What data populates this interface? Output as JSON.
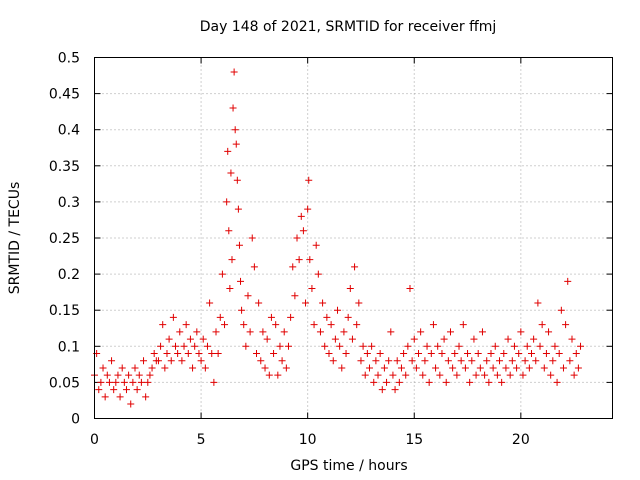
{
  "chart_data": {
    "type": "scatter",
    "title": "Day 148 of 2021, SRMTID for receiver ffmj",
    "xlabel": "GPS time / hours",
    "ylabel": "SRMTID / TECUs",
    "xlim": [
      0,
      24.3
    ],
    "ylim": [
      0,
      0.5
    ],
    "x_ticks": [
      0,
      5,
      10,
      15,
      20
    ],
    "y_ticks": [
      0,
      0.05,
      0.1,
      0.15,
      0.2,
      0.25,
      0.3,
      0.35,
      0.4,
      0.45,
      0.5
    ],
    "x_tick_labels": [
      "0",
      "5",
      "10",
      "15",
      "20"
    ],
    "y_tick_labels": [
      "0",
      "0.05",
      "0.1",
      "0.15",
      "0.2",
      "0.25",
      "0.3",
      "0.35",
      "0.4",
      "0.45",
      "0.5"
    ],
    "grid": true,
    "marker": "+",
    "color": "#e00000",
    "series": [
      {
        "name": "SRMTID",
        "points": [
          [
            0.0,
            0.06
          ],
          [
            0.1,
            0.09
          ],
          [
            0.2,
            0.04
          ],
          [
            0.3,
            0.05
          ],
          [
            0.4,
            0.07
          ],
          [
            0.5,
            0.03
          ],
          [
            0.6,
            0.06
          ],
          [
            0.7,
            0.05
          ],
          [
            0.8,
            0.08
          ],
          [
            0.9,
            0.04
          ],
          [
            1.0,
            0.05
          ],
          [
            1.1,
            0.06
          ],
          [
            1.2,
            0.03
          ],
          [
            1.3,
            0.07
          ],
          [
            1.4,
            0.05
          ],
          [
            1.5,
            0.04
          ],
          [
            1.6,
            0.06
          ],
          [
            1.7,
            0.02
          ],
          [
            1.8,
            0.05
          ],
          [
            1.9,
            0.07
          ],
          [
            2.0,
            0.04
          ],
          [
            2.1,
            0.06
          ],
          [
            2.2,
            0.05
          ],
          [
            2.3,
            0.08
          ],
          [
            2.4,
            0.03
          ],
          [
            2.5,
            0.05
          ],
          [
            2.6,
            0.06
          ],
          [
            2.7,
            0.07
          ],
          [
            2.8,
            0.09
          ],
          [
            2.9,
            0.08
          ],
          [
            3.0,
            0.08
          ],
          [
            3.1,
            0.1
          ],
          [
            3.2,
            0.13
          ],
          [
            3.3,
            0.07
          ],
          [
            3.4,
            0.09
          ],
          [
            3.5,
            0.11
          ],
          [
            3.6,
            0.08
          ],
          [
            3.7,
            0.14
          ],
          [
            3.8,
            0.1
          ],
          [
            3.9,
            0.09
          ],
          [
            4.0,
            0.12
          ],
          [
            4.1,
            0.08
          ],
          [
            4.2,
            0.1
          ],
          [
            4.3,
            0.13
          ],
          [
            4.4,
            0.09
          ],
          [
            4.5,
            0.11
          ],
          [
            4.6,
            0.07
          ],
          [
            4.7,
            0.1
          ],
          [
            4.8,
            0.12
          ],
          [
            4.9,
            0.09
          ],
          [
            5.0,
            0.08
          ],
          [
            5.1,
            0.11
          ],
          [
            5.2,
            0.07
          ],
          [
            5.3,
            0.1
          ],
          [
            5.4,
            0.16
          ],
          [
            5.5,
            0.09
          ],
          [
            5.6,
            0.05
          ],
          [
            5.7,
            0.12
          ],
          [
            5.8,
            0.09
          ],
          [
            5.9,
            0.14
          ],
          [
            6.0,
            0.2
          ],
          [
            6.1,
            0.13
          ],
          [
            6.2,
            0.3
          ],
          [
            6.25,
            0.37
          ],
          [
            6.3,
            0.26
          ],
          [
            6.35,
            0.18
          ],
          [
            6.4,
            0.34
          ],
          [
            6.45,
            0.22
          ],
          [
            6.5,
            0.43
          ],
          [
            6.55,
            0.48
          ],
          [
            6.6,
            0.4
          ],
          [
            6.65,
            0.38
          ],
          [
            6.7,
            0.33
          ],
          [
            6.75,
            0.29
          ],
          [
            6.8,
            0.24
          ],
          [
            6.85,
            0.19
          ],
          [
            6.9,
            0.15
          ],
          [
            7.0,
            0.13
          ],
          [
            7.1,
            0.1
          ],
          [
            7.2,
            0.17
          ],
          [
            7.3,
            0.12
          ],
          [
            7.4,
            0.25
          ],
          [
            7.5,
            0.21
          ],
          [
            7.6,
            0.09
          ],
          [
            7.7,
            0.16
          ],
          [
            7.8,
            0.08
          ],
          [
            7.9,
            0.12
          ],
          [
            8.0,
            0.07
          ],
          [
            8.1,
            0.11
          ],
          [
            8.2,
            0.06
          ],
          [
            8.3,
            0.14
          ],
          [
            8.4,
            0.09
          ],
          [
            8.5,
            0.13
          ],
          [
            8.6,
            0.06
          ],
          [
            8.7,
            0.1
          ],
          [
            8.8,
            0.08
          ],
          [
            8.9,
            0.12
          ],
          [
            9.0,
            0.07
          ],
          [
            9.1,
            0.1
          ],
          [
            9.2,
            0.14
          ],
          [
            9.3,
            0.21
          ],
          [
            9.4,
            0.17
          ],
          [
            9.5,
            0.25
          ],
          [
            9.6,
            0.22
          ],
          [
            9.7,
            0.28
          ],
          [
            9.8,
            0.26
          ],
          [
            9.9,
            0.16
          ],
          [
            10.0,
            0.29
          ],
          [
            10.05,
            0.33
          ],
          [
            10.1,
            0.22
          ],
          [
            10.2,
            0.18
          ],
          [
            10.3,
            0.13
          ],
          [
            10.4,
            0.24
          ],
          [
            10.5,
            0.2
          ],
          [
            10.6,
            0.12
          ],
          [
            10.7,
            0.16
          ],
          [
            10.8,
            0.1
          ],
          [
            10.9,
            0.14
          ],
          [
            11.0,
            0.09
          ],
          [
            11.1,
            0.13
          ],
          [
            11.2,
            0.08
          ],
          [
            11.3,
            0.11
          ],
          [
            11.4,
            0.15
          ],
          [
            11.5,
            0.1
          ],
          [
            11.6,
            0.07
          ],
          [
            11.7,
            0.12
          ],
          [
            11.8,
            0.09
          ],
          [
            11.9,
            0.14
          ],
          [
            12.0,
            0.18
          ],
          [
            12.1,
            0.11
          ],
          [
            12.2,
            0.21
          ],
          [
            12.3,
            0.13
          ],
          [
            12.4,
            0.16
          ],
          [
            12.5,
            0.08
          ],
          [
            12.6,
            0.1
          ],
          [
            12.7,
            0.06
          ],
          [
            12.8,
            0.09
          ],
          [
            12.9,
            0.07
          ],
          [
            13.0,
            0.1
          ],
          [
            13.1,
            0.05
          ],
          [
            13.2,
            0.08
          ],
          [
            13.3,
            0.06
          ],
          [
            13.4,
            0.09
          ],
          [
            13.5,
            0.04
          ],
          [
            13.6,
            0.07
          ],
          [
            13.7,
            0.05
          ],
          [
            13.8,
            0.08
          ],
          [
            13.9,
            0.12
          ],
          [
            14.0,
            0.06
          ],
          [
            14.1,
            0.04
          ],
          [
            14.2,
            0.08
          ],
          [
            14.3,
            0.05
          ],
          [
            14.4,
            0.07
          ],
          [
            14.5,
            0.09
          ],
          [
            14.6,
            0.06
          ],
          [
            14.7,
            0.1
          ],
          [
            14.8,
            0.18
          ],
          [
            14.9,
            0.08
          ],
          [
            15.0,
            0.11
          ],
          [
            15.1,
            0.07
          ],
          [
            15.2,
            0.09
          ],
          [
            15.3,
            0.12
          ],
          [
            15.4,
            0.06
          ],
          [
            15.5,
            0.08
          ],
          [
            15.6,
            0.1
          ],
          [
            15.7,
            0.05
          ],
          [
            15.8,
            0.09
          ],
          [
            15.9,
            0.13
          ],
          [
            16.0,
            0.07
          ],
          [
            16.1,
            0.1
          ],
          [
            16.2,
            0.06
          ],
          [
            16.3,
            0.09
          ],
          [
            16.4,
            0.11
          ],
          [
            16.5,
            0.05
          ],
          [
            16.6,
            0.08
          ],
          [
            16.7,
            0.12
          ],
          [
            16.8,
            0.07
          ],
          [
            16.9,
            0.09
          ],
          [
            17.0,
            0.06
          ],
          [
            17.1,
            0.1
          ],
          [
            17.2,
            0.08
          ],
          [
            17.3,
            0.13
          ],
          [
            17.4,
            0.07
          ],
          [
            17.5,
            0.09
          ],
          [
            17.6,
            0.05
          ],
          [
            17.7,
            0.08
          ],
          [
            17.8,
            0.11
          ],
          [
            17.9,
            0.06
          ],
          [
            18.0,
            0.09
          ],
          [
            18.1,
            0.07
          ],
          [
            18.2,
            0.12
          ],
          [
            18.3,
            0.06
          ],
          [
            18.4,
            0.08
          ],
          [
            18.5,
            0.05
          ],
          [
            18.6,
            0.09
          ],
          [
            18.7,
            0.07
          ],
          [
            18.8,
            0.1
          ],
          [
            18.9,
            0.06
          ],
          [
            19.0,
            0.08
          ],
          [
            19.1,
            0.05
          ],
          [
            19.2,
            0.09
          ],
          [
            19.3,
            0.07
          ],
          [
            19.4,
            0.11
          ],
          [
            19.5,
            0.06
          ],
          [
            19.6,
            0.08
          ],
          [
            19.7,
            0.1
          ],
          [
            19.8,
            0.07
          ],
          [
            19.9,
            0.09
          ],
          [
            20.0,
            0.12
          ],
          [
            20.1,
            0.06
          ],
          [
            20.2,
            0.08
          ],
          [
            20.3,
            0.1
          ],
          [
            20.4,
            0.07
          ],
          [
            20.5,
            0.09
          ],
          [
            20.6,
            0.11
          ],
          [
            20.7,
            0.08
          ],
          [
            20.8,
            0.16
          ],
          [
            20.9,
            0.1
          ],
          [
            21.0,
            0.13
          ],
          [
            21.1,
            0.07
          ],
          [
            21.2,
            0.09
          ],
          [
            21.3,
            0.12
          ],
          [
            21.4,
            0.06
          ],
          [
            21.5,
            0.08
          ],
          [
            21.6,
            0.1
          ],
          [
            21.7,
            0.05
          ],
          [
            21.8,
            0.09
          ],
          [
            21.9,
            0.15
          ],
          [
            22.0,
            0.07
          ],
          [
            22.1,
            0.13
          ],
          [
            22.2,
            0.19
          ],
          [
            22.3,
            0.08
          ],
          [
            22.4,
            0.11
          ],
          [
            22.5,
            0.06
          ],
          [
            22.6,
            0.09
          ],
          [
            22.7,
            0.07
          ],
          [
            22.8,
            0.1
          ]
        ]
      }
    ]
  }
}
